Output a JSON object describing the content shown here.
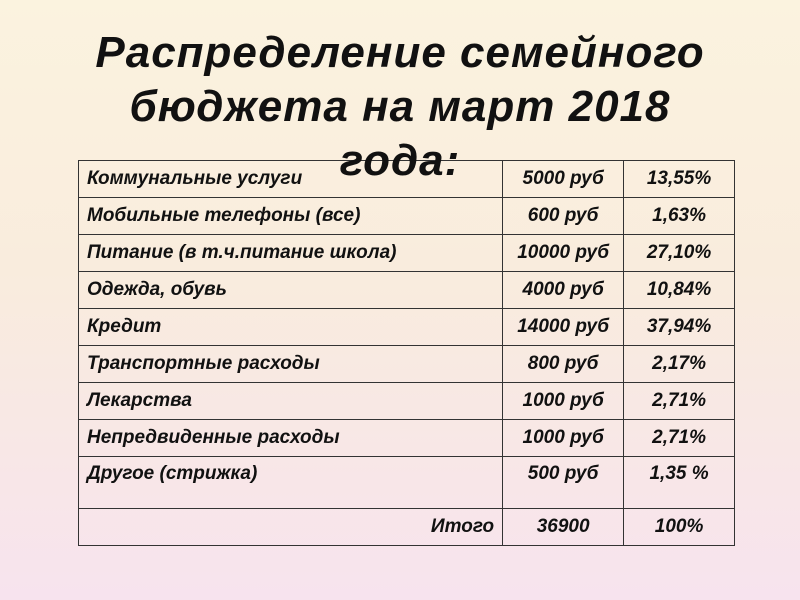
{
  "title": "Распределение семейного\nбюджета на март  2018\nгода:",
  "table": {
    "rows": [
      {
        "name": "Коммунальные услуги",
        "amount": "5000 руб",
        "percent": "13,55%"
      },
      {
        "name": "Мобильные телефоны (все)",
        "amount": "600 руб",
        "percent": "1,63%"
      },
      {
        "name": "Питание (в т.ч.питание школа)",
        "amount": "10000 руб",
        "percent": "27,10%"
      },
      {
        "name": "Одежда, обувь",
        "amount": "4000 руб",
        "percent": "10,84%"
      },
      {
        "name": "Кредит",
        "amount": "14000 руб",
        "percent": "37,94%"
      },
      {
        "name": "Транспортные расходы",
        "amount": "800 руб",
        "percent": "2,17%"
      },
      {
        "name": "Лекарства",
        "amount": "1000 руб",
        "percent": "2,71%"
      },
      {
        "name": "Непредвиденные расходы",
        "amount": "1000 руб",
        "percent": "2,71%"
      },
      {
        "name": "Другое (стрижка)",
        "amount": "500 руб",
        "percent": "1,35 %"
      }
    ],
    "total": {
      "label": "Итого",
      "amount": "36900",
      "percent": "100%"
    }
  }
}
